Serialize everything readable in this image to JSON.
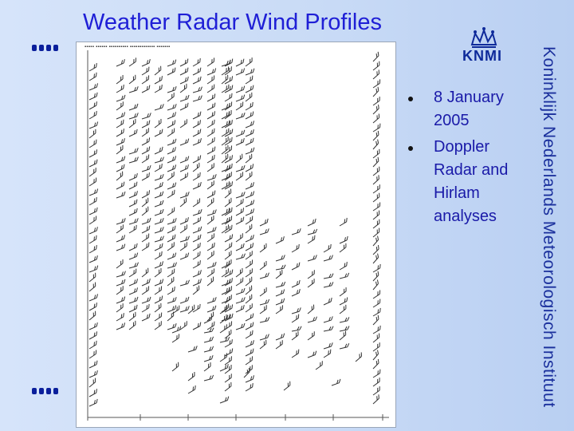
{
  "slide": {
    "title": "Weather Radar Wind Profiles",
    "organization": "Koninklijk Nederlands Meteorologisch Instituut",
    "logo_text": "KNMI"
  },
  "bullets": [
    {
      "text": "8 January 2005"
    },
    {
      "text": "Doppler Radar and Hirlam analyses"
    }
  ],
  "colors": {
    "title": "#1f1fd6",
    "bullet_text": "#1a1aa8",
    "logo": "#0e2a9a",
    "background": "#c4d9f7"
  },
  "icons": [
    "crown-icon",
    "bullet-dot-icon"
  ]
}
